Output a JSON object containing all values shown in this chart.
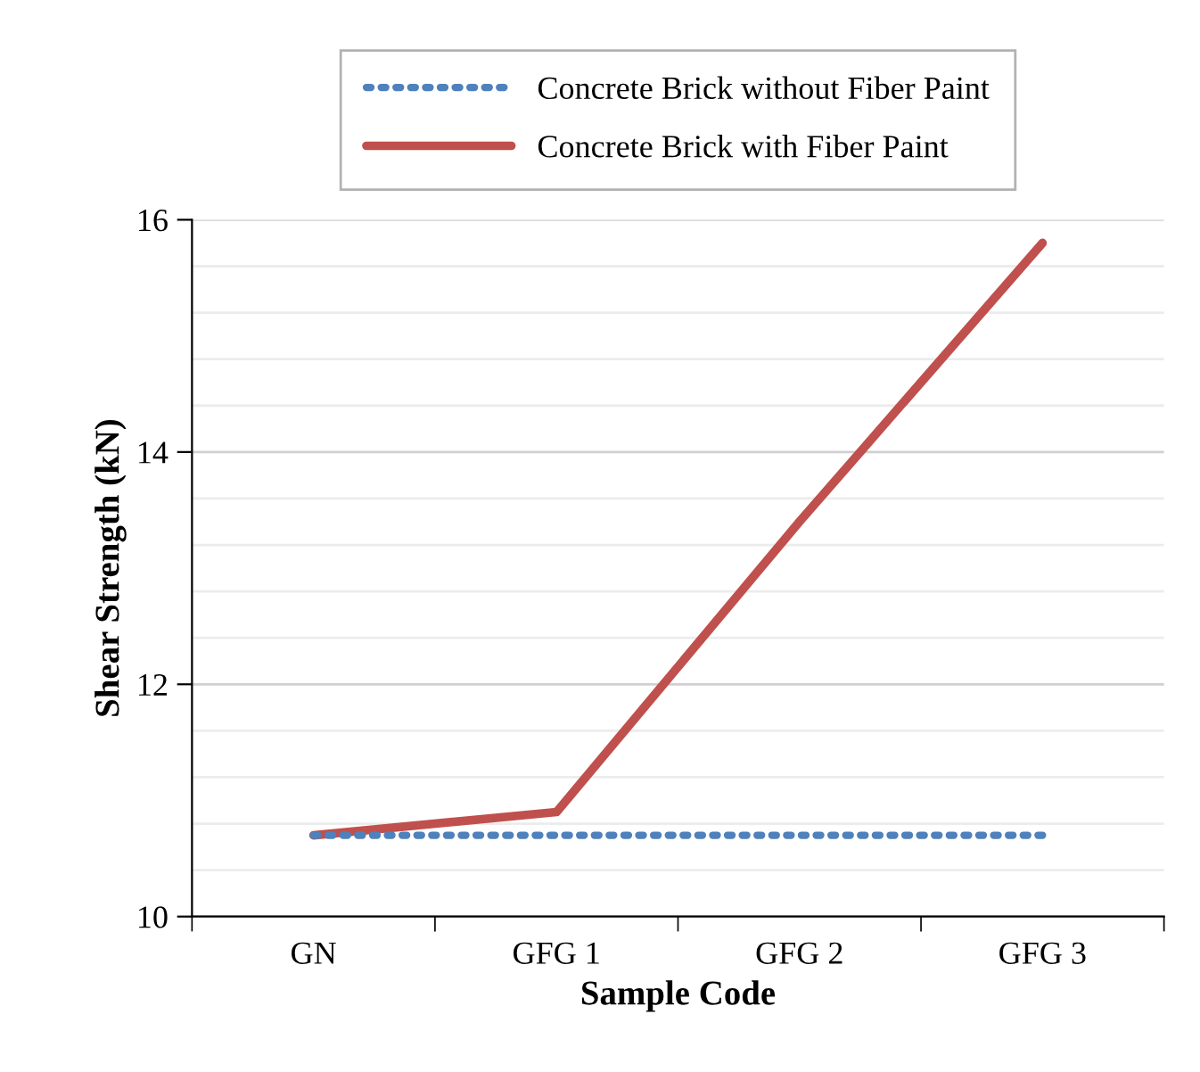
{
  "chart_data": {
    "type": "line",
    "xlabel": "Sample Code",
    "ylabel": "Shear Strength (kN)",
    "categories": [
      "GN",
      "GFG 1",
      "GFG 2",
      "GFG 3"
    ],
    "series": [
      {
        "name": "Concrete Brick without Fiber Paint",
        "color": "#4f81bd",
        "values": [
          10.7,
          10.7,
          10.7,
          10.7
        ],
        "line_style": "dotted"
      },
      {
        "name": "Concrete Brick with Fiber Paint",
        "color": "#c0504d",
        "values": [
          10.7,
          10.9,
          13.4,
          15.8
        ],
        "line_style": "solid"
      }
    ],
    "ylim": [
      10,
      16
    ],
    "yticks": [
      10,
      {
        "value": 10.4,
        "label": null
      },
      {
        "value": 10.8,
        "label": null
      },
      {
        "value": 11.2,
        "label": null
      },
      {
        "value": 11.6,
        "label": null
      },
      12,
      {
        "value": 12.4,
        "label": null
      },
      {
        "value": 12.8,
        "label": null
      },
      {
        "value": 13.2,
        "label": null
      },
      {
        "value": 13.6,
        "label": null
      },
      14,
      {
        "value": 14.4,
        "label": null
      },
      {
        "value": 14.8,
        "label": null
      },
      {
        "value": 15.2,
        "label": null
      },
      {
        "value": 15.6,
        "label": null
      },
      16
    ],
    "grid": "y",
    "legend": "top",
    "marker": "none"
  }
}
